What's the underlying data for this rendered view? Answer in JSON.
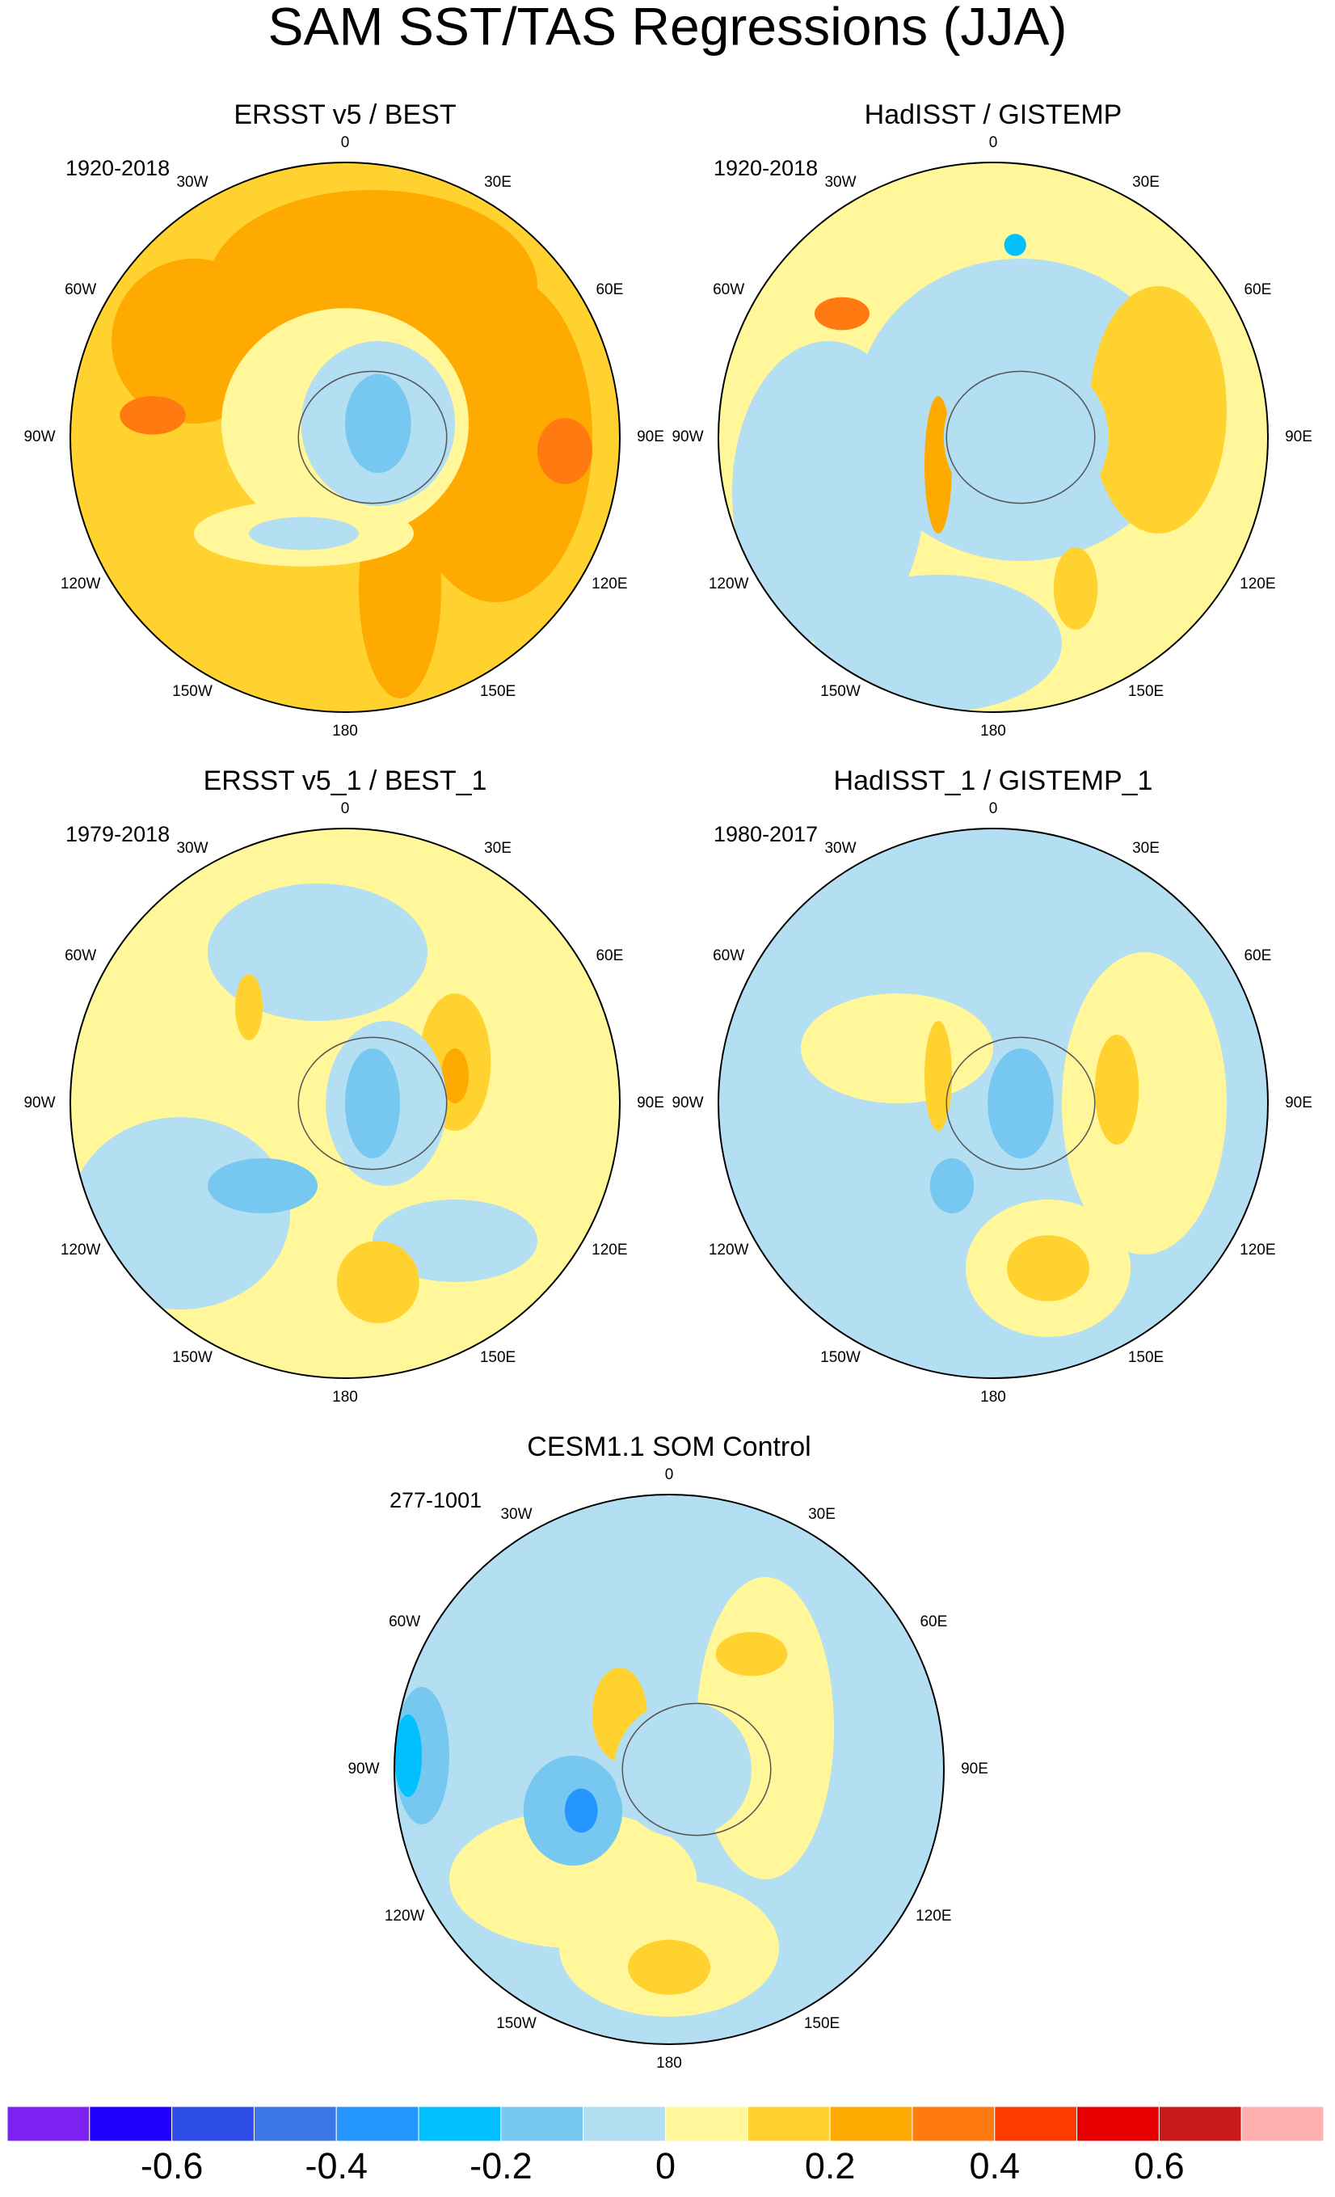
{
  "title": "SAM SST/TAS Regressions (JJA)",
  "longitude_labels": [
    "0",
    "30E",
    "60E",
    "90E",
    "120E",
    "150E",
    "180",
    "150W",
    "120W",
    "90W",
    "60W",
    "30W"
  ],
  "panels": [
    {
      "title": "ERSST v5 / BEST",
      "period": "1920-2018"
    },
    {
      "title": "HadISST / GISTEMP",
      "period": "1920-2018"
    },
    {
      "title": "ERSST v5_1 / BEST_1",
      "period": "1979-2018"
    },
    {
      "title": "HadISST_1 / GISTEMP_1",
      "period": "1980-2017"
    },
    {
      "title": "CESM1.1 SOM Control",
      "period": "277-1001"
    }
  ],
  "colorbar": {
    "range": [
      -0.8,
      0.8
    ],
    "colors": [
      "#7d22f0",
      "#1e00ff",
      "#2f4ee8",
      "#3a76e6",
      "#2596ff",
      "#00c0ff",
      "#76c8f0",
      "#b4def2",
      "#fff79a",
      "#ffd230",
      "#ffaa00",
      "#ff7a10",
      "#ff3c00",
      "#e60000",
      "#c81a1a",
      "#ffb0b0"
    ],
    "ticks": [
      -0.6,
      -0.4,
      -0.2,
      0,
      0.2,
      0.4,
      0.6
    ]
  }
}
